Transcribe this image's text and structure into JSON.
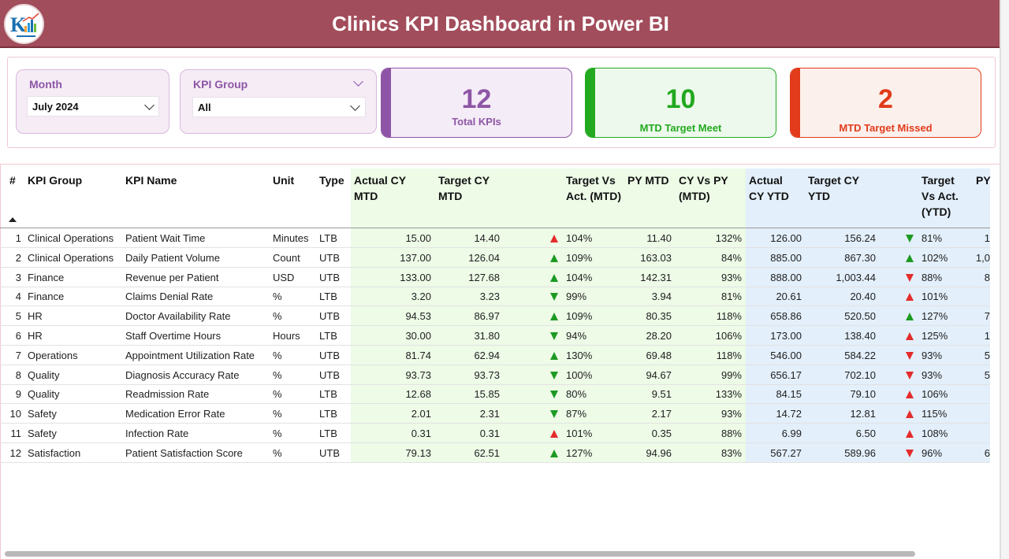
{
  "header": {
    "title": "Clinics KPI Dashboard in Power BI"
  },
  "slicers": {
    "month": {
      "label": "Month",
      "value": "July 2024"
    },
    "kpi_group": {
      "label": "KPI Group",
      "value": "All"
    }
  },
  "cards": [
    {
      "value": "12",
      "label": "Total KPIs",
      "color": "#8e55a6"
    },
    {
      "value": "10",
      "label": "MTD Target Meet",
      "color": "#22a91f"
    },
    {
      "value": "2",
      "label": "MTD Target Missed",
      "color": "#e13b1b"
    }
  ],
  "table": {
    "columns": [
      {
        "key": "num",
        "label": "#"
      },
      {
        "key": "group",
        "label": "KPI Group"
      },
      {
        "key": "name",
        "label": "KPI Name"
      },
      {
        "key": "unit",
        "label": "Unit"
      },
      {
        "key": "type",
        "label": "Type"
      },
      {
        "key": "act_mtd",
        "label": "Actual CY MTD"
      },
      {
        "key": "tgt_mtd",
        "label": "Target CY MTD"
      },
      {
        "key": "tva_mtd",
        "label": "Target Vs Act. (MTD)"
      },
      {
        "key": "py_mtd",
        "label": "PY MTD"
      },
      {
        "key": "cvp_mtd",
        "label": "CY Vs PY (MTD)"
      },
      {
        "key": "act_ytd",
        "label": "Actual CY YTD"
      },
      {
        "key": "tgt_ytd",
        "label": "Target CY YTD"
      },
      {
        "key": "tva_ytd",
        "label": "Target Vs Act. (YTD)"
      },
      {
        "key": "py_ytd",
        "label": "PY"
      }
    ],
    "rows": [
      {
        "num": "1",
        "group": "Clinical Operations",
        "name": "Patient Wait Time",
        "unit": "Minutes",
        "type": "LTB",
        "act_mtd": "15.00",
        "tgt_mtd": "14.40",
        "mtd_icon": "up-red",
        "tva_mtd": "104%",
        "py_mtd": "11.40",
        "cvp_mtd": "132%",
        "act_ytd": "126.00",
        "tgt_ytd": "156.24",
        "ytd_icon": "down-green",
        "tva_ytd": "81%",
        "py_ytd": "1"
      },
      {
        "num": "2",
        "group": "Clinical Operations",
        "name": "Daily Patient Volume",
        "unit": "Count",
        "type": "UTB",
        "act_mtd": "137.00",
        "tgt_mtd": "126.04",
        "mtd_icon": "up-green",
        "tva_mtd": "109%",
        "py_mtd": "163.03",
        "cvp_mtd": "84%",
        "act_ytd": "885.00",
        "tgt_ytd": "867.30",
        "ytd_icon": "up-green",
        "tva_ytd": "102%",
        "py_ytd": "1,0"
      },
      {
        "num": "3",
        "group": "Finance",
        "name": "Revenue per Patient",
        "unit": "USD",
        "type": "UTB",
        "act_mtd": "133.00",
        "tgt_mtd": "127.68",
        "mtd_icon": "up-green",
        "tva_mtd": "104%",
        "py_mtd": "142.31",
        "cvp_mtd": "93%",
        "act_ytd": "888.00",
        "tgt_ytd": "1,003.44",
        "ytd_icon": "down-red",
        "tva_ytd": "88%",
        "py_ytd": "8"
      },
      {
        "num": "4",
        "group": "Finance",
        "name": "Claims Denial Rate",
        "unit": "%",
        "type": "LTB",
        "act_mtd": "3.20",
        "tgt_mtd": "3.23",
        "mtd_icon": "down-green",
        "tva_mtd": "99%",
        "py_mtd": "3.94",
        "cvp_mtd": "81%",
        "act_ytd": "20.61",
        "tgt_ytd": "20.40",
        "ytd_icon": "up-red",
        "tva_ytd": "101%",
        "py_ytd": ""
      },
      {
        "num": "5",
        "group": "HR",
        "name": "Doctor Availability Rate",
        "unit": "%",
        "type": "UTB",
        "act_mtd": "94.53",
        "tgt_mtd": "86.97",
        "mtd_icon": "up-green",
        "tva_mtd": "109%",
        "py_mtd": "80.35",
        "cvp_mtd": "118%",
        "act_ytd": "658.86",
        "tgt_ytd": "520.50",
        "ytd_icon": "up-green",
        "tva_ytd": "127%",
        "py_ytd": "7"
      },
      {
        "num": "6",
        "group": "HR",
        "name": "Staff Overtime Hours",
        "unit": "Hours",
        "type": "LTB",
        "act_mtd": "30.00",
        "tgt_mtd": "31.80",
        "mtd_icon": "down-green",
        "tva_mtd": "94%",
        "py_mtd": "28.20",
        "cvp_mtd": "106%",
        "act_ytd": "173.00",
        "tgt_ytd": "138.40",
        "ytd_icon": "up-red",
        "tva_ytd": "125%",
        "py_ytd": "1"
      },
      {
        "num": "7",
        "group": "Operations",
        "name": "Appointment Utilization Rate",
        "unit": "%",
        "type": "UTB",
        "act_mtd": "81.74",
        "tgt_mtd": "62.94",
        "mtd_icon": "up-green",
        "tva_mtd": "130%",
        "py_mtd": "69.48",
        "cvp_mtd": "118%",
        "act_ytd": "546.00",
        "tgt_ytd": "584.22",
        "ytd_icon": "down-red",
        "tva_ytd": "93%",
        "py_ytd": "5"
      },
      {
        "num": "8",
        "group": "Quality",
        "name": "Diagnosis Accuracy Rate",
        "unit": "%",
        "type": "UTB",
        "act_mtd": "93.73",
        "tgt_mtd": "93.73",
        "mtd_icon": "down-green",
        "tva_mtd": "100%",
        "py_mtd": "94.67",
        "cvp_mtd": "99%",
        "act_ytd": "656.17",
        "tgt_ytd": "702.10",
        "ytd_icon": "down-red",
        "tva_ytd": "93%",
        "py_ytd": "5"
      },
      {
        "num": "9",
        "group": "Quality",
        "name": "Readmission Rate",
        "unit": "%",
        "type": "LTB",
        "act_mtd": "12.68",
        "tgt_mtd": "15.85",
        "mtd_icon": "down-green",
        "tva_mtd": "80%",
        "py_mtd": "9.51",
        "cvp_mtd": "133%",
        "act_ytd": "84.15",
        "tgt_ytd": "79.10",
        "ytd_icon": "up-red",
        "tva_ytd": "106%",
        "py_ytd": ""
      },
      {
        "num": "10",
        "group": "Safety",
        "name": "Medication Error Rate",
        "unit": "%",
        "type": "LTB",
        "act_mtd": "2.01",
        "tgt_mtd": "2.31",
        "mtd_icon": "down-green",
        "tva_mtd": "87%",
        "py_mtd": "2.17",
        "cvp_mtd": "93%",
        "act_ytd": "14.72",
        "tgt_ytd": "12.81",
        "ytd_icon": "up-red",
        "tva_ytd": "115%",
        "py_ytd": ""
      },
      {
        "num": "11",
        "group": "Safety",
        "name": "Infection Rate",
        "unit": "%",
        "type": "LTB",
        "act_mtd": "0.31",
        "tgt_mtd": "0.31",
        "mtd_icon": "up-red",
        "tva_mtd": "101%",
        "py_mtd": "0.35",
        "cvp_mtd": "88%",
        "act_ytd": "6.99",
        "tgt_ytd": "6.50",
        "ytd_icon": "up-red",
        "tva_ytd": "108%",
        "py_ytd": ""
      },
      {
        "num": "12",
        "group": "Satisfaction",
        "name": "Patient Satisfaction Score",
        "unit": "%",
        "type": "UTB",
        "act_mtd": "79.13",
        "tgt_mtd": "62.51",
        "mtd_icon": "up-green",
        "tva_mtd": "127%",
        "py_mtd": "94.96",
        "cvp_mtd": "83%",
        "act_ytd": "567.27",
        "tgt_ytd": "589.96",
        "ytd_icon": "down-red",
        "tva_ytd": "96%",
        "py_ytd": "6"
      }
    ]
  },
  "colors": {
    "header_bg": "#a24d5b",
    "green": "#1d9a22",
    "red": "#e42b2b",
    "mtd_bg": "#edfbe7",
    "ytd_bg": "#e3effb"
  }
}
